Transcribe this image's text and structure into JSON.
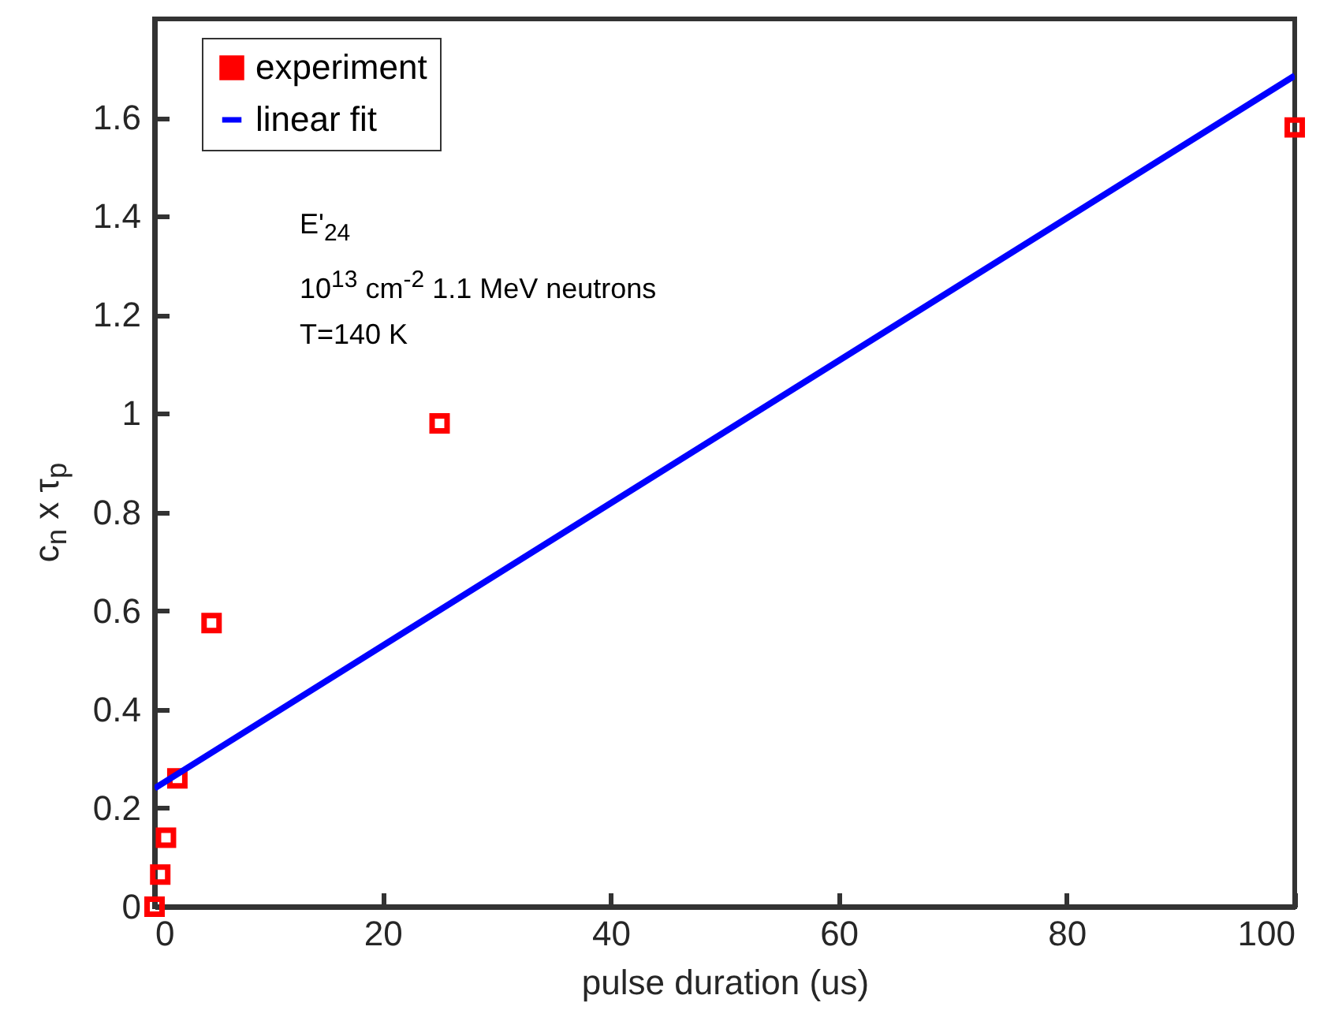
{
  "chart_data": {
    "type": "scatter",
    "xlabel": "pulse duration (us)",
    "ylabel": "c$_{n}$ x τ$_{p}$",
    "annotations": [
      "E'$_{24}$",
      "10$^{13}$ cm$^{-2}$ 1.1  MeV neutrons",
      "T=140 K"
    ],
    "xlim": [
      0,
      100
    ],
    "xticks": [
      0,
      20,
      40,
      60,
      80,
      100
    ],
    "ylim": [
      0,
      1.8
    ],
    "yticks": [
      0,
      0.2,
      0.4,
      0.6,
      0.8,
      1,
      1.2,
      1.4,
      1.6
    ],
    "legend": "top left",
    "series": [
      {
        "name": "experiment",
        "type": "scatter",
        "marker": "square",
        "color": "#ff0000",
        "x": [
          0,
          0.5,
          1,
          2,
          5,
          25,
          100
        ],
        "values": [
          0,
          0.065,
          0.14,
          0.26,
          0.575,
          0.98,
          1.58
        ]
      },
      {
        "name": "linear fit",
        "type": "line",
        "line_style": "solid",
        "color": "#0000ff",
        "x": [
          0,
          100
        ],
        "values": [
          0.24,
          1.685
        ]
      }
    ]
  }
}
